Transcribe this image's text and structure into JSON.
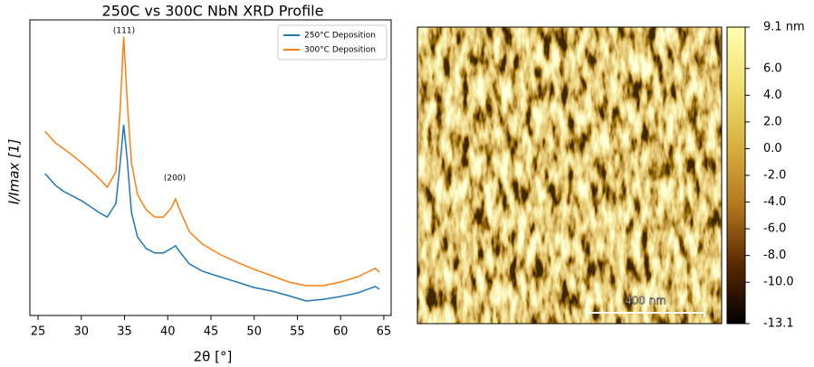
{
  "chart_data": [
    {
      "type": "line",
      "title": "250C vs 300C NbN XRD Profile",
      "xlabel": "2θ [°]",
      "ylabel": "I/Imax [1]",
      "x": [
        25.8,
        27,
        28,
        29,
        30,
        31,
        32,
        33,
        34,
        34.5,
        34.9,
        35.3,
        35.8,
        36.5,
        37.5,
        38.5,
        39.5,
        40.4,
        40.9,
        41.5,
        42.5,
        44,
        46,
        48,
        50,
        52,
        54,
        56,
        58,
        60,
        62,
        64,
        64.5
      ],
      "series": [
        {
          "name": "250°C Deposition",
          "color": "#1f77b4",
          "values": [
            0.509,
            0.467,
            0.444,
            0.428,
            0.412,
            0.392,
            0.37,
            0.353,
            0.402,
            0.548,
            0.684,
            0.564,
            0.37,
            0.282,
            0.24,
            0.224,
            0.224,
            0.24,
            0.25,
            0.224,
            0.185,
            0.159,
            0.139,
            0.12,
            0.1,
            0.088,
            0.071,
            0.052,
            0.058,
            0.068,
            0.081,
            0.104,
            0.094
          ]
        },
        {
          "name": "300°C Deposition",
          "color": "#ff7f0e",
          "values": [
            0.661,
            0.619,
            0.597,
            0.574,
            0.548,
            0.522,
            0.493,
            0.46,
            0.515,
            0.742,
            1.0,
            0.775,
            0.548,
            0.434,
            0.379,
            0.353,
            0.353,
            0.385,
            0.418,
            0.37,
            0.301,
            0.256,
            0.22,
            0.191,
            0.165,
            0.143,
            0.12,
            0.107,
            0.107,
            0.12,
            0.139,
            0.169,
            0.156
          ]
        }
      ],
      "annotations": [
        "(111)",
        "(200)"
      ],
      "xlim": [
        24.05,
        65.85
      ],
      "xticks": [
        25,
        30,
        35,
        40,
        45,
        50,
        55,
        60,
        65
      ],
      "ylim": [
        0,
        1.06
      ],
      "legend": "upper right"
    },
    {
      "type": "image",
      "scalebar": "400 nm",
      "clim": [
        -13.1,
        9.1
      ],
      "colors": [
        "#000000",
        "#5a2a00",
        "#b4781e",
        "#d9b040",
        "#f0e070",
        "#ffffb0"
      ],
      "cticks": [
        {
          "value": 9.1,
          "label": "9.1 nm"
        },
        {
          "value": 6,
          "label": "6.0"
        },
        {
          "value": 4,
          "label": "4.0"
        },
        {
          "value": 2,
          "label": "2.0"
        },
        {
          "value": 0,
          "label": "0.0"
        },
        {
          "value": -2,
          "label": "-2.0"
        },
        {
          "value": -4,
          "label": "-4.0"
        },
        {
          "value": -6,
          "label": "-6.0"
        },
        {
          "value": -8,
          "label": "-8.0"
        },
        {
          "value": -10,
          "label": "-10.0"
        },
        -13.1
      ]
    }
  ]
}
